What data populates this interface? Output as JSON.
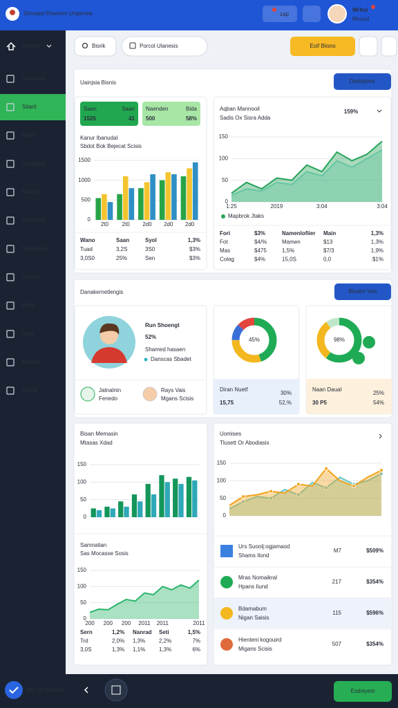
{
  "header": {
    "title": "Simulasi Ekamoni Ungensia",
    "action": "zap",
    "user_name": "Wrhoi",
    "user_role": "Mvuod"
  },
  "sidebar": {
    "brand": "Aelana",
    "items": [
      "Samarius",
      "Sitarit",
      "Eiado",
      "Sosgdord",
      "Baoldry",
      "Percilains",
      "Samecsia",
      "Samitis",
      "Biaid",
      "Mam",
      "Kordsit",
      "citanis"
    ],
    "active": 1
  },
  "toolbar": {
    "search": "Bisrik",
    "filter": "Porcol Ulanesis",
    "primary": "Eoif Biisns"
  },
  "overview": {
    "title": "Uainjsia Bisnis",
    "button": "Diadalyies",
    "stat_cards": [
      {
        "label": "Saan",
        "sub": "Saan",
        "value": "1526",
        "delta": "41",
        "color": "#21a74f"
      },
      {
        "label": "Naenden",
        "sub": "Bida",
        "value": "500",
        "delta": "58%",
        "color": "#a8e6a6"
      }
    ],
    "bar_chart": {
      "type": "bar",
      "title": "Kanur Ibanudal",
      "subtitle": "Sbdot Bok Bejecat Scisis",
      "categories": [
        "2t0",
        "2t0",
        "2d0",
        "2d0",
        "2d0"
      ],
      "series": [
        {
          "color": "#27a447",
          "values": [
            550,
            650,
            800,
            1000,
            1100
          ]
        },
        {
          "color": "#f4c430",
          "values": [
            650,
            1100,
            950,
            1200,
            1300
          ]
        },
        {
          "color": "#2f8fc4",
          "values": [
            450,
            800,
            1150,
            1150,
            1450
          ]
        }
      ],
      "ylim": [
        0,
        1500
      ],
      "yticks": [
        0,
        500,
        1000,
        1500
      ],
      "grid": true
    },
    "table": [
      [
        "Wano",
        "Saan",
        "Syol",
        "1,3%"
      ],
      [
        "Tuad",
        "3,2S",
        "3S0",
        "$3%"
      ],
      [
        "3,0S0",
        "25%",
        "Sen",
        "$3%"
      ]
    ],
    "line_chart": {
      "type": "area",
      "title": "Aqban Mannooil",
      "subtitle": "Sadis Ox Sisra Adda",
      "kpi": "159%",
      "categories": [
        "1:25",
        null,
        null,
        "2019",
        null,
        null,
        "3:04",
        null,
        null,
        null,
        "3:04"
      ],
      "series": [
        {
          "color": "#8fded3",
          "values": [
            15,
            30,
            25,
            45,
            40,
            70,
            60,
            95,
            80,
            100,
            120
          ]
        },
        {
          "name": "Mapbrok Jtaks",
          "color": "#27a35a",
          "values": [
            20,
            45,
            30,
            55,
            50,
            85,
            70,
            115,
            95,
            110,
            140
          ]
        }
      ],
      "ylim": [
        0,
        150
      ],
      "yticks": [
        0,
        50,
        100,
        150
      ],
      "grid": true
    },
    "line_table": [
      [
        "Fori",
        "$3%",
        "Namenlofiier",
        "Main",
        "1,3%"
      ],
      [
        "Fot",
        "$4/%",
        "Mamen",
        "$13",
        "1,3%"
      ],
      [
        "Mas",
        "$475",
        "1,5%",
        "$7/3",
        "1,9%"
      ],
      [
        "Colag",
        "$4%",
        "15,0S",
        "0,0",
        "$1%"
      ]
    ]
  },
  "people": {
    "title": "Danakernetlengis",
    "button": "Blsaim Yals",
    "profile": {
      "name": "Run Shoengt",
      "value": "52%",
      "line1": "Shamed hasaen",
      "tag": "Danscas Sbadet",
      "contacts": [
        {
          "name": "Jatnalnin",
          "sub": "Fenedo"
        },
        {
          "name": "Rays Vais",
          "sub": "Mgans Scisis"
        }
      ]
    },
    "donuts": [
      {
        "type": "donut",
        "label": "45%",
        "values": [
          45,
          30,
          12,
          13
        ],
        "colors": [
          "#1fab55",
          "#f3b81f",
          "#3b6fd8",
          "#e2463c"
        ],
        "footer_title": "Diran Nuetf",
        "footer_a": "30%",
        "footer_value": "15,75",
        "footer_b": "52,%",
        "footer_color": "#e8f0fb"
      },
      {
        "type": "donut",
        "label": "98%",
        "values": [
          60,
          30,
          10
        ],
        "colors": [
          "#1fab55",
          "#f3b81f",
          "#bfe6c9"
        ],
        "footer_title": "Naan Daual",
        "footer_a": "25%",
        "footer_value": "30 P5",
        "footer_b": "54%",
        "footer_color": "#fdf0dd"
      }
    ]
  },
  "analysis": {
    "bar_chart": {
      "type": "bar",
      "title": "Bisan Memasin",
      "subtitle": "Mtasas Xdad",
      "series": [
        {
          "color": "#14955a",
          "values": [
            25,
            30,
            45,
            65,
            95,
            120,
            110,
            115
          ]
        },
        {
          "color": "#2fa8b8",
          "values": [
            20,
            25,
            30,
            45,
            65,
            100,
            95,
            105
          ]
        }
      ],
      "ylim": [
        0,
        150
      ],
      "yticks": [
        0,
        50,
        100,
        150
      ],
      "grid": true
    },
    "area_chart": {
      "type": "area",
      "title": "Samnatian",
      "subtitle": "Sas Mocasse Sosis",
      "categories": [
        "200",
        null,
        "200",
        null,
        "200",
        null,
        "2011",
        null,
        "2011",
        null,
        null,
        null,
        "2011"
      ],
      "series": [
        {
          "color": "#2bb56a",
          "values": [
            20,
            30,
            28,
            45,
            60,
            55,
            80,
            75,
            100,
            90,
            105,
            95,
            120
          ]
        }
      ],
      "ylim": [
        0,
        150
      ],
      "yticks": [
        0,
        50,
        100,
        150
      ],
      "grid": true
    },
    "table": [
      [
        "Sern",
        "1,2%",
        "Nanrad",
        "Seti",
        "1,5%"
      ],
      [
        "Trd",
        "2,0%",
        "1,3%",
        "2,2%",
        "7%"
      ],
      [
        "3,0S",
        "1,3%",
        "1,1%",
        "1,3%",
        "6%"
      ]
    ],
    "line_chart": {
      "type": "area",
      "title": "Uomises",
      "subtitle": "Tlusett Or Abodiasis",
      "markers": true,
      "series": [
        {
          "color": "#6cc7c6",
          "values": [
            20,
            40,
            55,
            50,
            75,
            60,
            95,
            80,
            110,
            90,
            100,
            120
          ]
        },
        {
          "color": "#f0a31c",
          "values": [
            30,
            55,
            60,
            70,
            65,
            90,
            85,
            135,
            100,
            85,
            110,
            130
          ]
        }
      ],
      "ylim": [
        0,
        150
      ],
      "yticks": [
        0,
        50,
        100,
        150
      ],
      "grid": true
    },
    "list": [
      {
        "name": "Urs Suoolj:ogjamaod",
        "sub": "Shams Ilond",
        "num": "M7",
        "pct": "$509%",
        "color": "#3b82e0"
      },
      {
        "name": "Mras Nomaikral",
        "sub": "Hpans Iiund",
        "num": "217",
        "pct": "$354%",
        "color": "#1fab55"
      },
      {
        "name": "Bdamabum",
        "sub": "Nigan Saisis",
        "num": "115",
        "pct": "$596%",
        "color": "#f3b81f"
      },
      {
        "name": "Hienteni kogouird",
        "sub": "Migans Scisis",
        "num": "507",
        "pct": "$354%",
        "color": "#e06a3c"
      }
    ]
  },
  "footer": {
    "status": "Neo Sc Bvepod",
    "button": "Esdniyest"
  }
}
